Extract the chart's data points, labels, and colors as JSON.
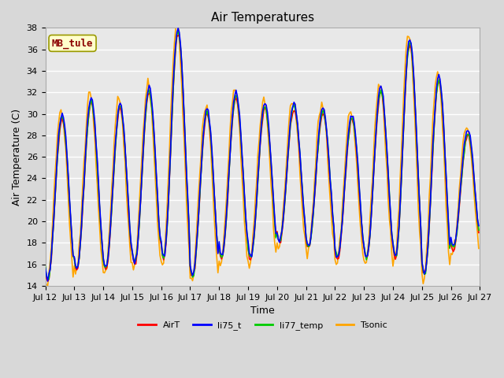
{
  "title": "Air Temperatures",
  "xlabel": "Time",
  "ylabel": "Air Temperature (C)",
  "ylim": [
    14,
    38
  ],
  "x_tick_labels": [
    "Jul 12",
    "Jul 13",
    "Jul 14",
    "Jul 15",
    "Jul 16",
    "Jul 17",
    "Jul 18",
    "Jul 19",
    "Jul 20",
    "Jul 21",
    "Jul 22",
    "Jul 23",
    "Jul 24",
    "Jul 25",
    "Jul 26",
    "Jul 27"
  ],
  "annotation_text": "MB_tule",
  "annotation_color": "#8B0000",
  "annotation_bg": "#FFFFCC",
  "series": {
    "AirT": {
      "color": "#FF0000",
      "lw": 1.2
    },
    "li75_t": {
      "color": "#0000FF",
      "lw": 1.2
    },
    "li77_temp": {
      "color": "#00CC00",
      "lw": 1.2
    },
    "Tsonic": {
      "color": "#FFA500",
      "lw": 1.2
    }
  },
  "title_fontsize": 11,
  "label_fontsize": 9,
  "tick_fontsize": 8
}
